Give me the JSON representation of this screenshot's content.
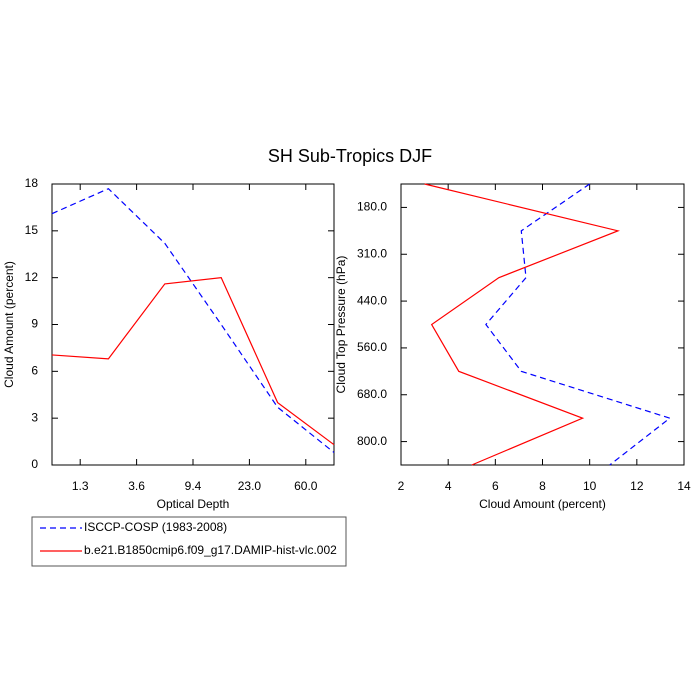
{
  "chart_data": [
    {
      "type": "line",
      "title": "SH Sub-Tropics DJF",
      "xlabel": "Optical Depth",
      "ylabel": "Cloud Amount (percent)",
      "x": [
        0,
        1,
        2,
        3,
        4,
        5
      ],
      "xlim": [
        0,
        5
      ],
      "ylim": [
        0,
        18
      ],
      "xticks": [
        {
          "value": 0.5,
          "label": "1.3"
        },
        {
          "value": 1.5,
          "label": "3.6"
        },
        {
          "value": 2.5,
          "label": "9.4"
        },
        {
          "value": 3.5,
          "label": "23.0"
        },
        {
          "value": 4.5,
          "label": "60.0"
        }
      ],
      "yticks": [
        0,
        3,
        6,
        9,
        12,
        15,
        18
      ],
      "series": [
        {
          "name": "ISCCP-COSP (1983-2008)",
          "color": "#0000ff",
          "dashed": true,
          "values": [
            16.1,
            17.7,
            14.2,
            9.0,
            3.7,
            0.8
          ]
        },
        {
          "name": "b.e21.B1850cmip6.f09_g17.DAMIP-hist-vlc.002",
          "color": "#ff0000",
          "dashed": false,
          "values": [
            7.05,
            6.8,
            11.6,
            12.0,
            4.0,
            1.3
          ]
        }
      ]
    },
    {
      "type": "line",
      "orientation": "horizontal",
      "xlabel": "Cloud Amount (percent)",
      "ylabel": "Cloud Top Pressure (hPa)",
      "y": [
        0,
        1,
        2,
        3,
        4,
        5,
        6
      ],
      "xlim": [
        2,
        14
      ],
      "ylim": [
        6,
        0
      ],
      "xticks": [
        2,
        4,
        6,
        8,
        10,
        12,
        14
      ],
      "yticks": [
        {
          "value": 0.5,
          "label": "180.0"
        },
        {
          "value": 1.5,
          "label": "310.0"
        },
        {
          "value": 2.5,
          "label": "440.0"
        },
        {
          "value": 3.5,
          "label": "560.0"
        },
        {
          "value": 4.5,
          "label": "680.0"
        },
        {
          "value": 5.5,
          "label": "800.0"
        }
      ],
      "series": [
        {
          "color": "#0000ff",
          "dashed": true,
          "values": [
            10.0,
            7.1,
            7.3,
            5.6,
            7.1,
            13.4,
            10.85
          ]
        },
        {
          "color": "#ff0000",
          "dashed": false,
          "values": [
            3.0,
            11.2,
            6.15,
            3.3,
            4.45,
            9.7,
            5.0
          ]
        }
      ]
    }
  ]
}
